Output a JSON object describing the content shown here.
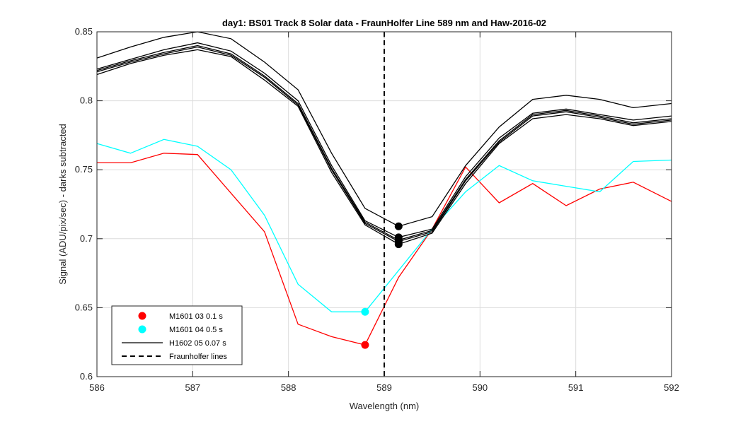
{
  "chart_data": {
    "type": "line",
    "title": "day1: BS01  Track 8 Solar data - FraunHolfer Line 589 nm and Haw-2016-02",
    "xlabel": "Wavelength (nm)",
    "ylabel": "Signal (ADU/pix/sec) - darks subtracted",
    "xlim": [
      586,
      592
    ],
    "ylim": [
      0.6,
      0.85
    ],
    "xticks": [
      586,
      587,
      588,
      589,
      590,
      591,
      592
    ],
    "xtick_labels": [
      "586",
      "587",
      "588",
      "589",
      "590",
      "591",
      "592"
    ],
    "yticks": [
      0.6,
      0.65,
      0.7,
      0.75,
      0.8,
      0.85
    ],
    "ytick_labels": [
      "0.6",
      "0.65",
      "0.7",
      "0.75",
      "0.8",
      "0.85"
    ],
    "grid": true,
    "legend_position": "bottom-left",
    "x": [
      586.0,
      586.35,
      586.7,
      587.05,
      587.4,
      587.75,
      588.1,
      588.45,
      588.8,
      589.15,
      589.5,
      589.85,
      590.2,
      590.55,
      590.9,
      591.25,
      591.6,
      592.0
    ],
    "series": [
      {
        "name": "M1601 03 0.1 s",
        "color": "#ff0000",
        "values": [
          0.755,
          0.755,
          0.762,
          0.761,
          0.733,
          0.705,
          0.638,
          0.629,
          0.623,
          0.672,
          0.707,
          0.752,
          0.726,
          0.74,
          0.724,
          0.736,
          0.741,
          0.727
        ],
        "marker": {
          "x": 588.8,
          "y": 0.623
        }
      },
      {
        "name": "M1601 04 0.5 s",
        "color": "#00ffff",
        "values": [
          0.769,
          0.762,
          0.772,
          0.767,
          0.75,
          0.717,
          0.667,
          0.647,
          0.647,
          0.677,
          0.707,
          0.734,
          0.753,
          0.742,
          0.738,
          0.734,
          0.756,
          0.757
        ],
        "marker": {
          "x": 588.8,
          "y": 0.647
        }
      },
      {
        "name": "H1602 05 0.07 s",
        "color": "#000000",
        "lines": [
          {
            "values": [
              0.831,
              0.839,
              0.846,
              0.85,
              0.845,
              0.828,
              0.808,
              0.762,
              0.722,
              0.709,
              0.716,
              0.753,
              0.781,
              0.801,
              0.804,
              0.801,
              0.795,
              0.798
            ],
            "marker_y": 0.709
          },
          {
            "values": [
              0.823,
              0.83,
              0.837,
              0.842,
              0.836,
              0.82,
              0.8,
              0.753,
              0.713,
              0.701,
              0.707,
              0.745,
              0.773,
              0.791,
              0.794,
              0.79,
              0.786,
              0.789
            ],
            "marker_y": 0.701
          },
          {
            "values": [
              0.822,
              0.829,
              0.835,
              0.84,
              0.834,
              0.818,
              0.798,
              0.751,
              0.712,
              0.699,
              0.706,
              0.743,
              0.771,
              0.79,
              0.793,
              0.789,
              0.784,
              0.787
            ],
            "marker_y": 0.699
          },
          {
            "values": [
              0.821,
              0.828,
              0.834,
              0.839,
              0.833,
              0.817,
              0.797,
              0.75,
              0.711,
              0.698,
              0.705,
              0.742,
              0.77,
              0.789,
              0.792,
              0.788,
              0.783,
              0.786
            ],
            "marker_y": 0.698
          },
          {
            "values": [
              0.819,
              0.827,
              0.833,
              0.837,
              0.832,
              0.815,
              0.796,
              0.748,
              0.71,
              0.696,
              0.704,
              0.74,
              0.769,
              0.787,
              0.79,
              0.787,
              0.782,
              0.785
            ],
            "marker_y": 0.696
          }
        ],
        "marker_x": 589.15
      },
      {
        "name": "Fraunholfer lines",
        "color": "#000000",
        "style": "dashed",
        "x_value": 589.0
      }
    ]
  }
}
